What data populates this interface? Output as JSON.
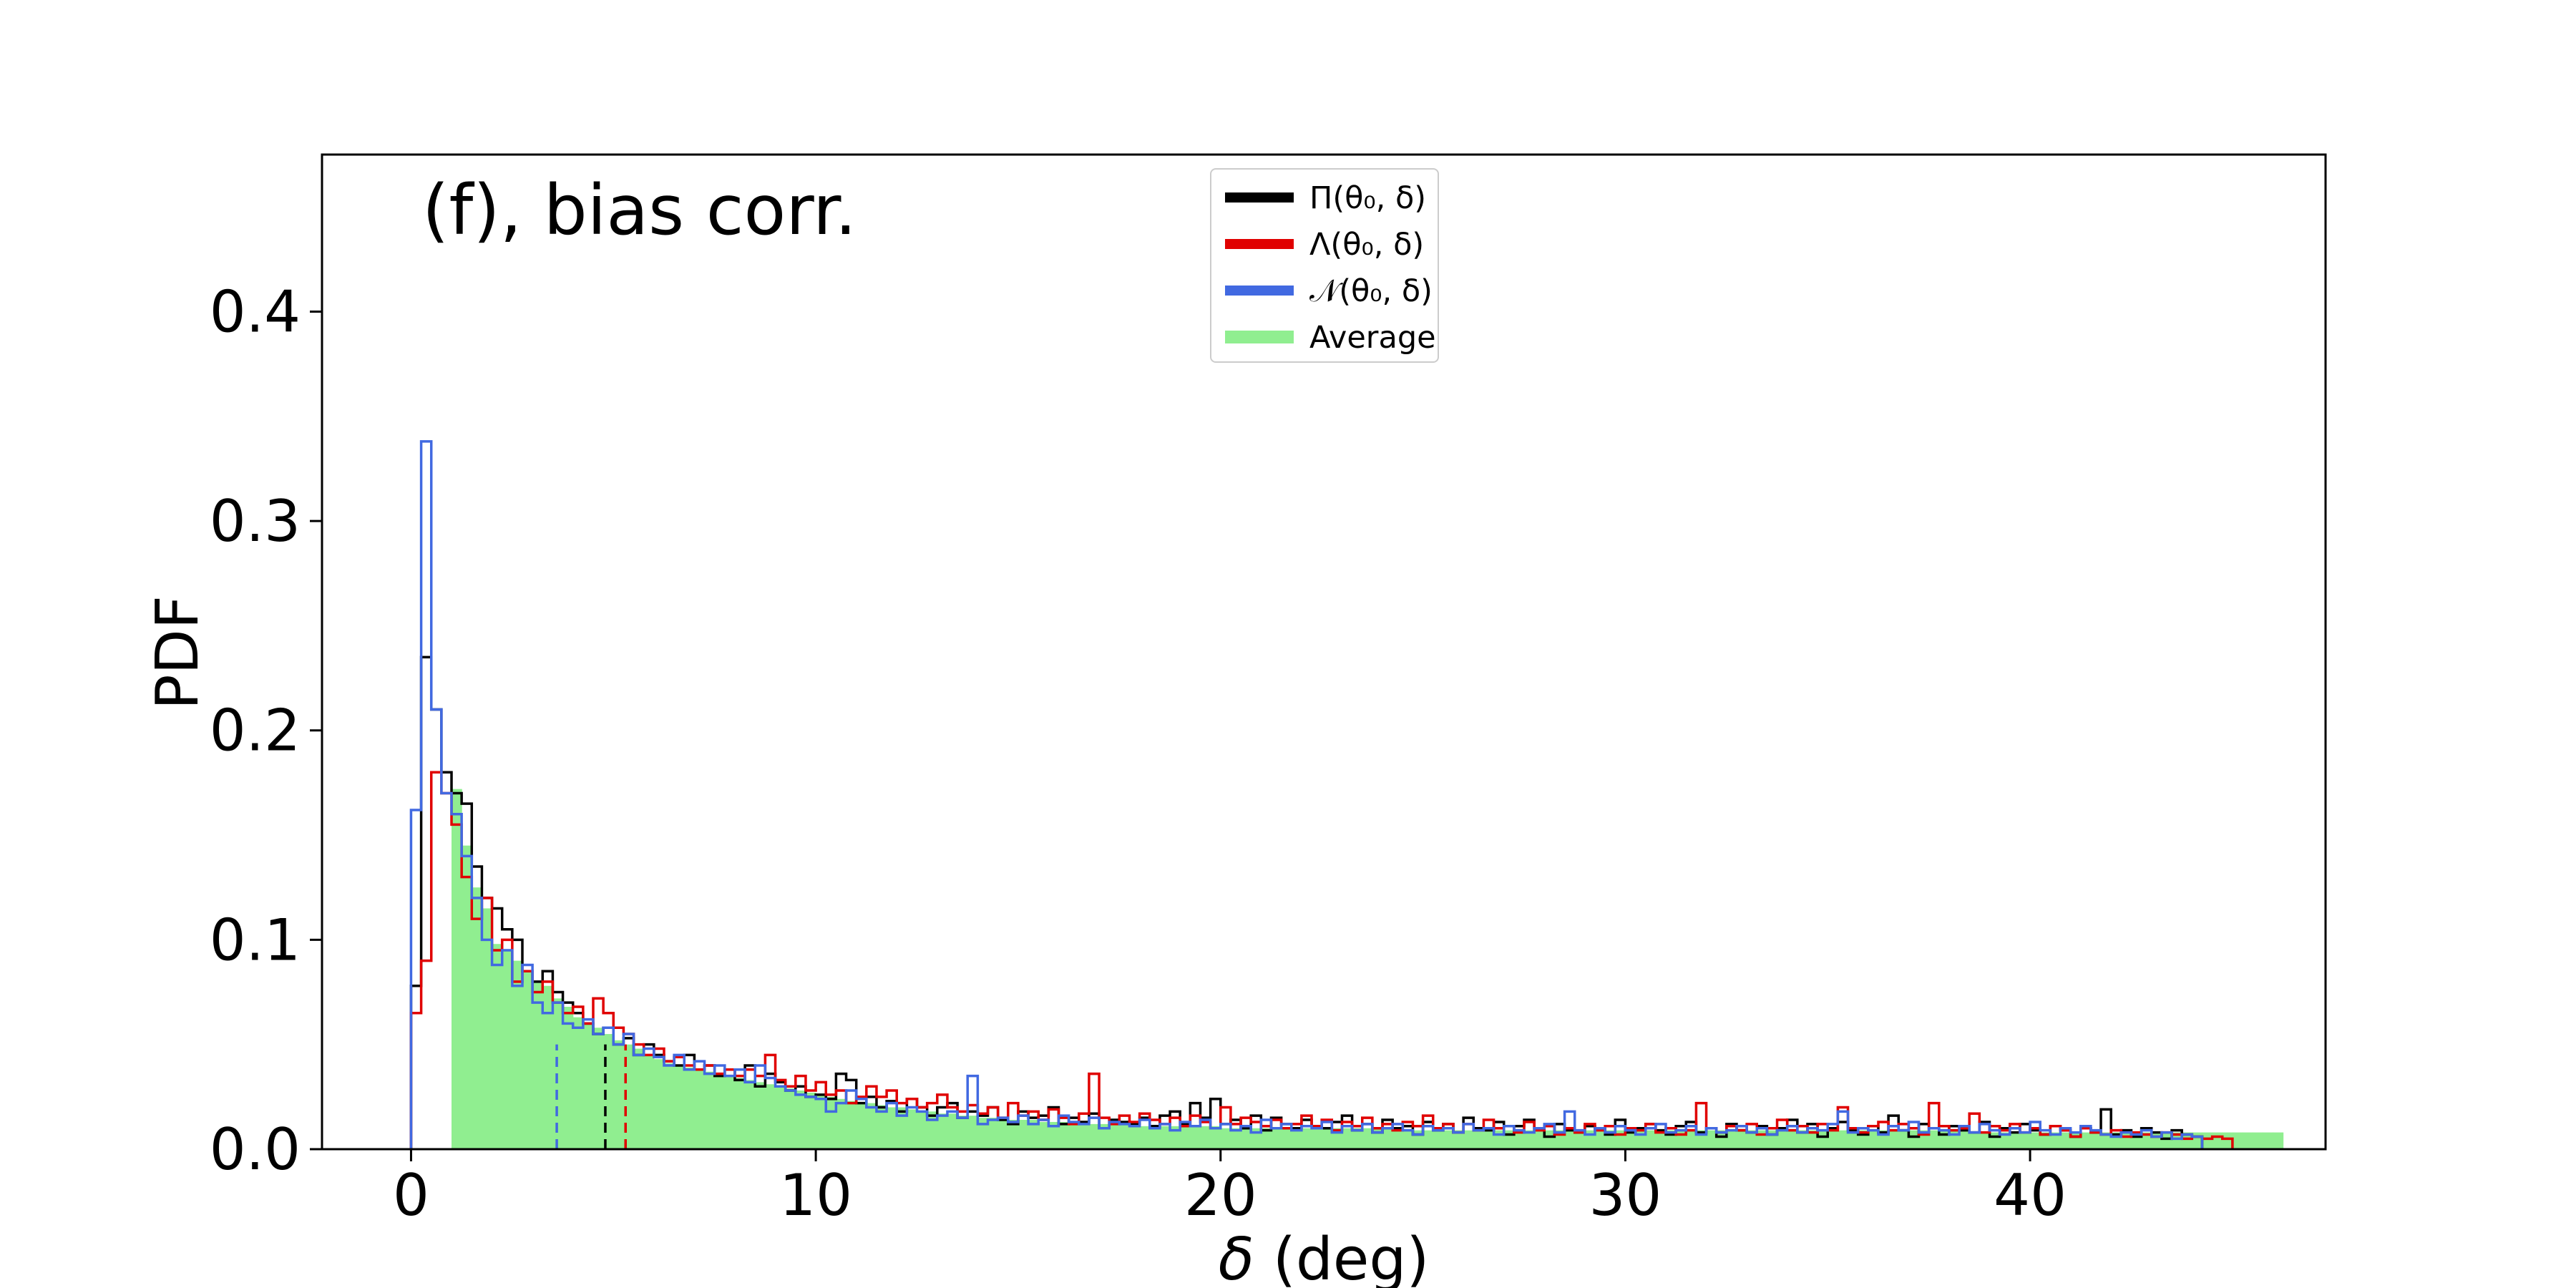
{
  "chart_data": {
    "type": "histogram",
    "title": "(f), bias corr.",
    "xlabel": "δ (deg)",
    "ylabel": "PDF",
    "xlim": [
      -2.2,
      47.3
    ],
    "ylim": [
      0,
      0.475
    ],
    "xticks": [
      0,
      10,
      20,
      30,
      40
    ],
    "yticks": [
      0.0,
      0.1,
      0.2,
      0.3,
      0.4
    ],
    "xtick_labels": [
      "0",
      "10",
      "20",
      "30",
      "40"
    ],
    "ytick_labels": [
      "0.0",
      "0.1",
      "0.2",
      "0.3",
      "0.4"
    ],
    "grid": false,
    "legend_position": "top-center",
    "bin_width": 0.25,
    "x_start": 0,
    "series": [
      {
        "name": "Π(θ₀, δ)",
        "color": "#000000",
        "values": [
          0.078,
          0.235,
          0.21,
          0.18,
          0.17,
          0.165,
          0.135,
          0.12,
          0.115,
          0.105,
          0.1,
          0.085,
          0.08,
          0.085,
          0.075,
          0.07,
          0.065,
          0.06,
          0.055,
          0.058,
          0.05,
          0.053,
          0.045,
          0.05,
          0.045,
          0.042,
          0.04,
          0.045,
          0.038,
          0.04,
          0.035,
          0.038,
          0.033,
          0.04,
          0.03,
          0.036,
          0.032,
          0.028,
          0.03,
          0.025,
          0.026,
          0.024,
          0.036,
          0.033,
          0.022,
          0.025,
          0.02,
          0.023,
          0.018,
          0.024,
          0.02,
          0.016,
          0.02,
          0.022,
          0.015,
          0.018,
          0.016,
          0.02,
          0.014,
          0.012,
          0.018,
          0.015,
          0.016,
          0.02,
          0.012,
          0.015,
          0.013,
          0.017,
          0.01,
          0.014,
          0.013,
          0.012,
          0.015,
          0.011,
          0.016,
          0.018,
          0.012,
          0.022,
          0.015,
          0.024,
          0.012,
          0.014,
          0.01,
          0.016,
          0.009,
          0.015,
          0.012,
          0.01,
          0.014,
          0.011,
          0.01,
          0.013,
          0.016,
          0.009,
          0.012,
          0.008,
          0.014,
          0.01,
          0.011,
          0.007,
          0.013,
          0.009,
          0.012,
          0.008,
          0.015,
          0.01,
          0.009,
          0.013,
          0.007,
          0.011,
          0.014,
          0.01,
          0.006,
          0.012,
          0.009,
          0.008,
          0.011,
          0.01,
          0.007,
          0.014,
          0.008,
          0.01,
          0.012,
          0.009,
          0.007,
          0.011,
          0.013,
          0.008,
          0.01,
          0.006,
          0.012,
          0.009,
          0.008,
          0.011,
          0.007,
          0.01,
          0.014,
          0.008,
          0.012,
          0.006,
          0.01,
          0.013,
          0.009,
          0.007,
          0.011,
          0.008,
          0.016,
          0.009,
          0.006,
          0.012,
          0.01,
          0.007,
          0.011,
          0.009,
          0.008,
          0.013,
          0.006,
          0.01,
          0.008,
          0.012,
          0.009,
          0.007,
          0.011,
          0.009,
          0.006,
          0.01,
          0.008,
          0.019,
          0.007,
          0.009,
          0.006,
          0.01,
          0.008,
          0.005,
          0.009,
          0.007,
          0.006
        ]
      },
      {
        "name": "Λ(θ₀, δ)",
        "color": "#e00000",
        "values": [
          0.065,
          0.09,
          0.18,
          0.17,
          0.155,
          0.13,
          0.11,
          0.12,
          0.095,
          0.1,
          0.08,
          0.085,
          0.075,
          0.08,
          0.07,
          0.065,
          0.068,
          0.06,
          0.072,
          0.065,
          0.058,
          0.055,
          0.05,
          0.045,
          0.048,
          0.042,
          0.044,
          0.04,
          0.038,
          0.04,
          0.036,
          0.038,
          0.035,
          0.038,
          0.035,
          0.045,
          0.033,
          0.03,
          0.035,
          0.028,
          0.032,
          0.026,
          0.028,
          0.022,
          0.025,
          0.03,
          0.025,
          0.028,
          0.022,
          0.024,
          0.02,
          0.022,
          0.026,
          0.02,
          0.018,
          0.021,
          0.017,
          0.02,
          0.015,
          0.022,
          0.016,
          0.018,
          0.014,
          0.019,
          0.015,
          0.012,
          0.017,
          0.036,
          0.015,
          0.012,
          0.016,
          0.013,
          0.017,
          0.014,
          0.012,
          0.015,
          0.011,
          0.016,
          0.013,
          0.01,
          0.02,
          0.012,
          0.015,
          0.013,
          0.011,
          0.014,
          0.01,
          0.012,
          0.016,
          0.011,
          0.014,
          0.009,
          0.013,
          0.011,
          0.015,
          0.01,
          0.012,
          0.009,
          0.013,
          0.011,
          0.016,
          0.01,
          0.012,
          0.008,
          0.012,
          0.009,
          0.014,
          0.01,
          0.011,
          0.008,
          0.013,
          0.009,
          0.011,
          0.007,
          0.01,
          0.008,
          0.012,
          0.009,
          0.011,
          0.007,
          0.01,
          0.009,
          0.012,
          0.008,
          0.01,
          0.007,
          0.009,
          0.022,
          0.01,
          0.008,
          0.011,
          0.009,
          0.012,
          0.007,
          0.01,
          0.014,
          0.009,
          0.011,
          0.008,
          0.012,
          0.009,
          0.02,
          0.01,
          0.008,
          0.011,
          0.013,
          0.009,
          0.012,
          0.01,
          0.007,
          0.022,
          0.011,
          0.009,
          0.01,
          0.017,
          0.008,
          0.011,
          0.009,
          0.012,
          0.008,
          0.01,
          0.007,
          0.011,
          0.009,
          0.006,
          0.01,
          0.008,
          0.007,
          0.009,
          0.006,
          0.008,
          0.007,
          0.006,
          0.008,
          0.007,
          0.005,
          0.006,
          0.005,
          0.006,
          0.005
        ]
      },
      {
        "name": "𝒩(θ₀, δ)",
        "color": "#4169e1",
        "values": [
          0.162,
          0.338,
          0.21,
          0.17,
          0.16,
          0.14,
          0.12,
          0.1,
          0.088,
          0.095,
          0.078,
          0.088,
          0.07,
          0.065,
          0.07,
          0.06,
          0.058,
          0.062,
          0.055,
          0.058,
          0.05,
          0.055,
          0.045,
          0.048,
          0.044,
          0.04,
          0.045,
          0.038,
          0.042,
          0.036,
          0.04,
          0.035,
          0.038,
          0.032,
          0.04,
          0.034,
          0.03,
          0.028,
          0.026,
          0.025,
          0.024,
          0.018,
          0.022,
          0.028,
          0.024,
          0.02,
          0.018,
          0.022,
          0.016,
          0.02,
          0.018,
          0.014,
          0.016,
          0.018,
          0.015,
          0.035,
          0.012,
          0.014,
          0.015,
          0.013,
          0.016,
          0.012,
          0.014,
          0.011,
          0.016,
          0.013,
          0.012,
          0.015,
          0.01,
          0.013,
          0.012,
          0.011,
          0.014,
          0.01,
          0.012,
          0.009,
          0.013,
          0.011,
          0.014,
          0.01,
          0.012,
          0.009,
          0.011,
          0.008,
          0.014,
          0.01,
          0.012,
          0.009,
          0.011,
          0.01,
          0.013,
          0.008,
          0.011,
          0.009,
          0.012,
          0.008,
          0.01,
          0.012,
          0.009,
          0.007,
          0.011,
          0.009,
          0.01,
          0.008,
          0.012,
          0.009,
          0.01,
          0.007,
          0.011,
          0.009,
          0.008,
          0.01,
          0.012,
          0.008,
          0.018,
          0.009,
          0.007,
          0.01,
          0.008,
          0.011,
          0.009,
          0.007,
          0.01,
          0.012,
          0.008,
          0.009,
          0.011,
          0.007,
          0.01,
          0.008,
          0.009,
          0.011,
          0.008,
          0.01,
          0.007,
          0.009,
          0.011,
          0.008,
          0.01,
          0.009,
          0.012,
          0.018,
          0.008,
          0.01,
          0.009,
          0.007,
          0.011,
          0.009,
          0.013,
          0.008,
          0.01,
          0.009,
          0.007,
          0.011,
          0.008,
          0.012,
          0.009,
          0.007,
          0.01,
          0.008,
          0.013,
          0.009,
          0.007,
          0.01,
          0.008,
          0.011,
          0.009,
          0.007,
          0.006,
          0.008,
          0.007,
          0.009,
          0.006,
          0.008,
          0.005,
          0.007,
          0.006
        ]
      },
      {
        "name": "Average",
        "color": "#90ee90",
        "start_bin": 4,
        "values": [
          0.172,
          0.145,
          0.125,
          0.115,
          0.098,
          0.095,
          0.09,
          0.085,
          0.08,
          0.078,
          0.072,
          0.068,
          0.063,
          0.06,
          0.058,
          0.055,
          0.052,
          0.05,
          0.048,
          0.045,
          0.043,
          0.041,
          0.04,
          0.039,
          0.038,
          0.037,
          0.036,
          0.035,
          0.034,
          0.033,
          0.032,
          0.031,
          0.03,
          0.029,
          0.028,
          0.027,
          0.026,
          0.025,
          0.024,
          0.023,
          0.022,
          0.022,
          0.021,
          0.02,
          0.02,
          0.019,
          0.018,
          0.018,
          0.017,
          0.017,
          0.016,
          0.016,
          0.015,
          0.015,
          0.015,
          0.014,
          0.014,
          0.014,
          0.013,
          0.013,
          0.013,
          0.013,
          0.012,
          0.012,
          0.012,
          0.012,
          0.012,
          0.012,
          0.011,
          0.011,
          0.011,
          0.011,
          0.011,
          0.011,
          0.011,
          0.011,
          0.01,
          0.01,
          0.01,
          0.01,
          0.01,
          0.01,
          0.01,
          0.01,
          0.01,
          0.01,
          0.01,
          0.01,
          0.01,
          0.01,
          0.01,
          0.01,
          0.01,
          0.009,
          0.009,
          0.009,
          0.009,
          0.009,
          0.009,
          0.009,
          0.009,
          0.009,
          0.009,
          0.009,
          0.009,
          0.009,
          0.009,
          0.009,
          0.009,
          0.009,
          0.009,
          0.009,
          0.009,
          0.009,
          0.009,
          0.009,
          0.009,
          0.009,
          0.009,
          0.009,
          0.009,
          0.009,
          0.009,
          0.009,
          0.009,
          0.009,
          0.009,
          0.009,
          0.009,
          0.009,
          0.009,
          0.009,
          0.009,
          0.009,
          0.009,
          0.009,
          0.009,
          0.009,
          0.009,
          0.009,
          0.009,
          0.009,
          0.009,
          0.009,
          0.009,
          0.009,
          0.009,
          0.009,
          0.009,
          0.009,
          0.008,
          0.008,
          0.008,
          0.008,
          0.008,
          0.008,
          0.008,
          0.008,
          0.008,
          0.008,
          0.008,
          0.008,
          0.008,
          0.008,
          0.008,
          0.008,
          0.008,
          0.008,
          0.008,
          0.008,
          0.008,
          0.008,
          0.008,
          0.008,
          0.008,
          0.008,
          0.008,
          0.008,
          0.008,
          0.008,
          0.008
        ]
      }
    ],
    "vlines": [
      {
        "x": 3.6,
        "color": "#4169e1",
        "style": "dashed"
      },
      {
        "x": 4.8,
        "color": "#000000",
        "style": "dashed"
      },
      {
        "x": 5.3,
        "color": "#e00000",
        "style": "dashed"
      }
    ]
  }
}
